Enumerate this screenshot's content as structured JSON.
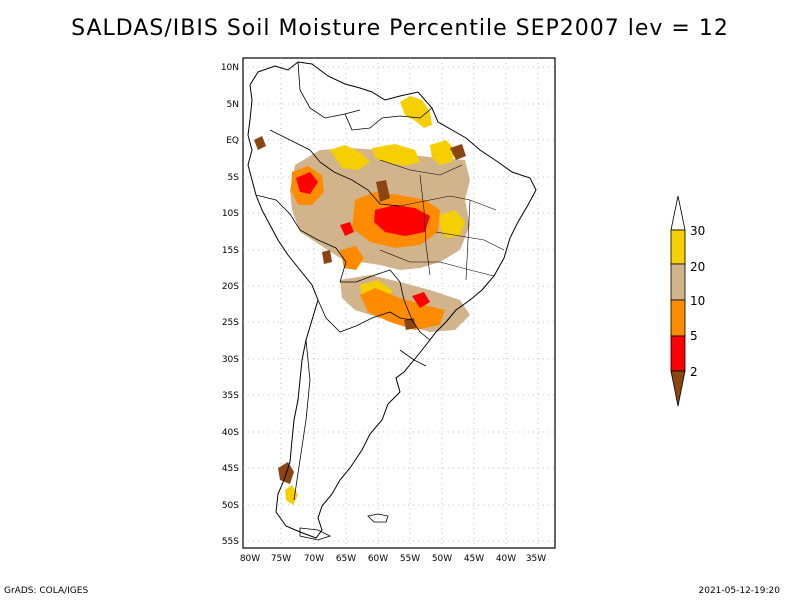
{
  "title": "SALDAS/IBIS Soil Moisture Percentile SEP2007 lev = 12",
  "map": {
    "lon_labels": [
      "80W",
      "75W",
      "70W",
      "65W",
      "60W",
      "55W",
      "50W",
      "45W",
      "40W",
      "35W"
    ],
    "lat_labels": [
      "10N",
      "5N",
      "EQ",
      "5S",
      "10S",
      "15S",
      "20S",
      "25S",
      "30S",
      "35S",
      "40S",
      "45S",
      "50S",
      "55S"
    ]
  },
  "legend": {
    "labels": [
      "30",
      "20",
      "10",
      "5",
      "2"
    ],
    "colors": {
      "above_30": "#ffffff",
      "p20_30": "#f5cf00",
      "p10_20": "#d2b48c",
      "p5_10": "#ff8c00",
      "p2_5": "#ff0000",
      "below_2": "#8b4513"
    }
  },
  "footer": {
    "left": "GrADS: COLA/IGES",
    "right": "2021-05-12-19:20"
  }
}
